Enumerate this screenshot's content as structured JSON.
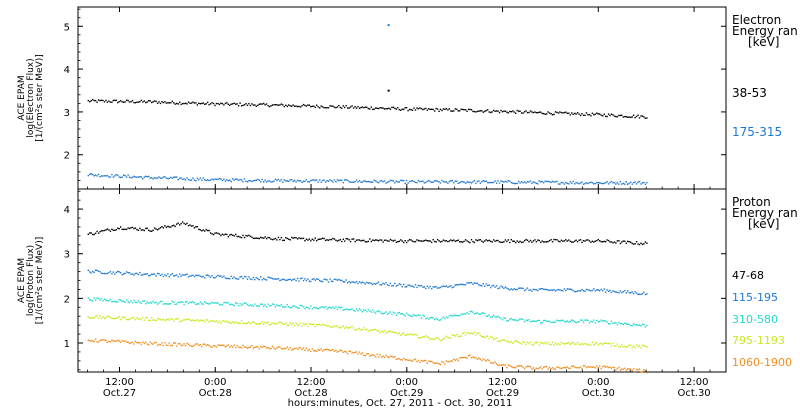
{
  "colors": {
    "frame": "#000000",
    "black": "#000000",
    "blue": "#1e78d0",
    "cyan": "#20d8cc",
    "yellowgreen": "#c8e81e",
    "orange": "#f08c1e"
  },
  "xaxis": {
    "title": "hours:minutes, Oct. 27, 2011 - Oct. 30, 2011",
    "ticks": [
      {
        "h": 12,
        "time": "12:00",
        "date": "Oct.27"
      },
      {
        "h": 24,
        "time": "0:00",
        "date": "Oct.28"
      },
      {
        "h": 36,
        "time": "12:00",
        "date": "Oct.28"
      },
      {
        "h": 48,
        "time": "0:00",
        "date": "Oct.29"
      },
      {
        "h": 60,
        "time": "12:00",
        "date": "Oct.29"
      },
      {
        "h": 72,
        "time": "0:00",
        "date": "Oct.30"
      },
      {
        "h": 84,
        "time": "12:00",
        "date": "Oct.30"
      }
    ]
  },
  "chart_data": [
    {
      "type": "scatter",
      "panel": "electron",
      "ylabel_lines": [
        "ACE EPAM",
        "log(Electron Flux)",
        "[1/(cm²s ster MeV)]"
      ],
      "legend_title_lines": [
        "Electron",
        "Energy ran",
        "[keV]"
      ],
      "xlim_hours": [
        6.8,
        88
      ],
      "ylim": [
        1.2,
        5.45
      ],
      "yticks": [
        2,
        3,
        4,
        5
      ],
      "series": [
        {
          "name": "38-53",
          "color": "black",
          "x_hours": [
            8,
            16,
            24,
            32,
            40,
            48,
            56,
            64,
            72,
            78
          ],
          "y": [
            3.27,
            3.25,
            3.2,
            3.17,
            3.13,
            3.08,
            3.05,
            3.0,
            2.95,
            2.9
          ]
        },
        {
          "name": "175-315",
          "color": "blue",
          "x_hours": [
            8,
            16,
            24,
            32,
            40,
            48,
            56,
            64,
            72,
            78
          ],
          "y": [
            1.55,
            1.48,
            1.43,
            1.41,
            1.4,
            1.38,
            1.38,
            1.37,
            1.36,
            1.36
          ]
        }
      ],
      "annotations": [
        {
          "x_hours": 45.6,
          "y": 5.05,
          "color": "blue"
        },
        {
          "x_hours": 45.6,
          "y": 3.52,
          "color": "black"
        }
      ]
    },
    {
      "type": "scatter",
      "panel": "proton",
      "ylabel_lines": [
        "ACE EPAM",
        "log(Proton Flux)",
        "[1/(cm²s ster MeV)]"
      ],
      "legend_title_lines": [
        "Proton",
        "Energy ran",
        "[keV]"
      ],
      "xlim_hours": [
        6.8,
        88
      ],
      "ylim": [
        0.35,
        4.45
      ],
      "yticks": [
        1,
        2,
        3,
        4
      ],
      "series": [
        {
          "name": "47-68",
          "color": "black",
          "x_hours": [
            8,
            12,
            16,
            20,
            24,
            32,
            40,
            48,
            56,
            64,
            72,
            77,
            78
          ],
          "y": [
            3.45,
            3.6,
            3.55,
            3.7,
            3.45,
            3.35,
            3.32,
            3.3,
            3.3,
            3.3,
            3.3,
            3.25,
            3.25
          ]
        },
        {
          "name": "115-195",
          "color": "blue",
          "x_hours": [
            8,
            16,
            24,
            32,
            40,
            48,
            52,
            56,
            60,
            64,
            72,
            78
          ],
          "y": [
            2.62,
            2.55,
            2.5,
            2.45,
            2.4,
            2.3,
            2.25,
            2.35,
            2.25,
            2.2,
            2.2,
            2.12
          ]
        },
        {
          "name": "310-580",
          "color": "cyan",
          "x_hours": [
            8,
            16,
            24,
            32,
            40,
            48,
            52,
            56,
            60,
            64,
            72,
            78
          ],
          "y": [
            2.0,
            1.92,
            1.9,
            1.85,
            1.78,
            1.65,
            1.55,
            1.72,
            1.55,
            1.5,
            1.5,
            1.4
          ]
        },
        {
          "name": "795-1193",
          "color": "yellowgreen",
          "x_hours": [
            8,
            16,
            24,
            32,
            40,
            48,
            52,
            56,
            60,
            64,
            72,
            78
          ],
          "y": [
            1.6,
            1.55,
            1.5,
            1.45,
            1.38,
            1.2,
            1.1,
            1.25,
            1.05,
            1.0,
            1.0,
            0.92
          ]
        },
        {
          "name": "1060-1900",
          "color": "orange",
          "x_hours": [
            8,
            16,
            24,
            32,
            40,
            48,
            52,
            56,
            60,
            64,
            72,
            78
          ],
          "y": [
            1.08,
            1.0,
            0.95,
            0.9,
            0.82,
            0.65,
            0.55,
            0.72,
            0.5,
            0.45,
            0.48,
            0.38
          ]
        }
      ]
    }
  ]
}
